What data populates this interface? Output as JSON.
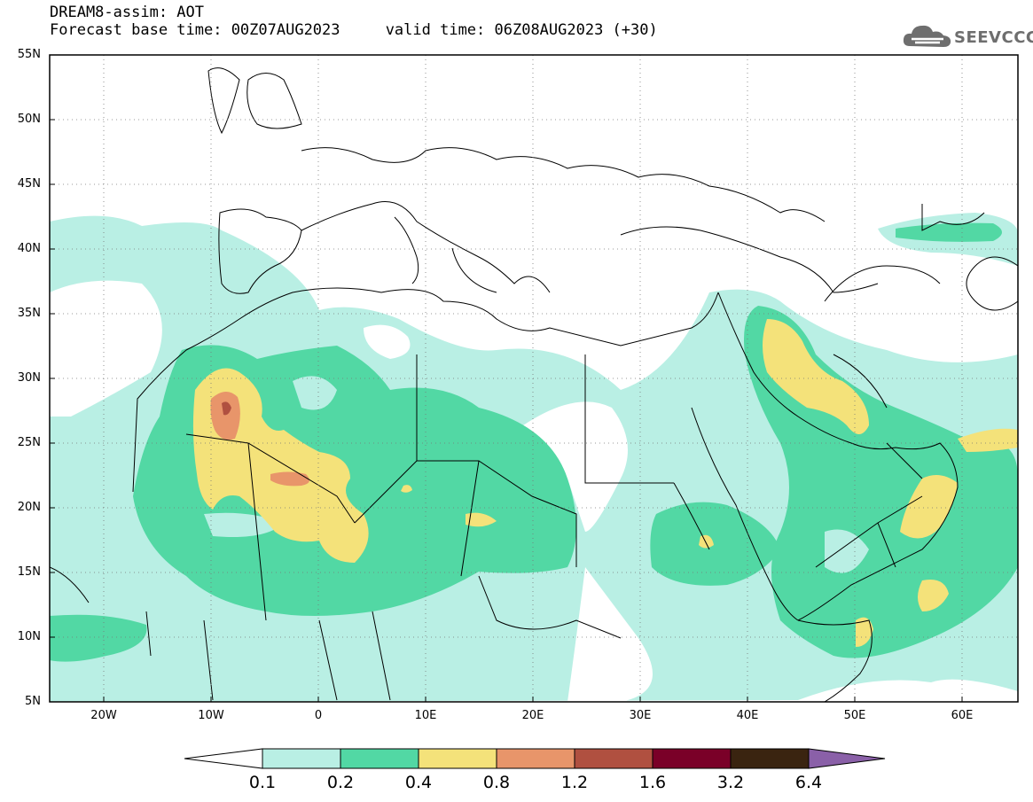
{
  "title_line1": "DREAM8-assim: AOT",
  "title_line2": "Forecast base time: 00Z07AUG2023     valid time: 06Z08AUG2023 (+30)",
  "logo_text": "SEEVCCC",
  "map": {
    "lon_range": [
      -25,
      65
    ],
    "lat_range": [
      5,
      55
    ],
    "lat_ticks": [
      "55N",
      "50N",
      "45N",
      "40N",
      "35N",
      "30N",
      "25N",
      "20N",
      "15N",
      "10N",
      "5N"
    ],
    "lon_ticks": [
      "20W",
      "10W",
      "0",
      "10E",
      "20E",
      "30E",
      "40E",
      "50E",
      "60E"
    ]
  },
  "colorbar": {
    "levels": [
      "0.1",
      "0.2",
      "0.4",
      "0.8",
      "1.2",
      "1.6",
      "3.2",
      "6.4"
    ],
    "colors": [
      "#ffffff",
      "#b9efe4",
      "#52d8a4",
      "#f4e27a",
      "#e8956a",
      "#b05040",
      "#7a0028",
      "#3a2410",
      "#8a60a8"
    ]
  }
}
